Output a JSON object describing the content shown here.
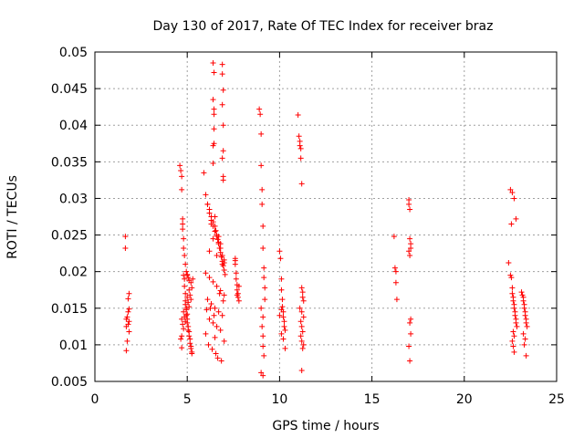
{
  "chart_data": {
    "type": "scatter",
    "title": "Day 130 of 2017, Rate Of TEC Index for receiver braz",
    "xlabel": "GPS time / hours",
    "ylabel": "ROTI / TECUs",
    "xlim": [
      0,
      25
    ],
    "ylim": [
      0.005,
      0.05
    ],
    "xticks": [
      0,
      5,
      10,
      15,
      20,
      25
    ],
    "xtick_labels": [
      "0",
      "5",
      "10",
      "15",
      "20",
      "25"
    ],
    "yticks": [
      0.005,
      0.01,
      0.015,
      0.02,
      0.025,
      0.03,
      0.035,
      0.04,
      0.045,
      0.05
    ],
    "ytick_labels": [
      "0.005",
      "0.01",
      "0.015",
      "0.02",
      "0.025",
      "0.03",
      "0.035",
      "0.04",
      "0.045",
      "0.05"
    ],
    "grid": true,
    "marker": "+",
    "marker_color": "#ff0000",
    "series": [
      {
        "x": [
          1.65,
          1.65,
          1.7,
          1.7,
          1.7,
          1.75,
          1.75,
          1.8,
          1.8,
          1.8,
          1.85,
          1.85,
          1.85,
          1.85,
          4.6,
          4.65,
          4.7,
          4.7,
          4.75,
          4.75,
          4.8,
          4.8,
          4.85,
          4.85,
          4.9,
          4.9,
          4.95,
          4.95,
          5.0,
          5.0,
          5.05,
          5.05,
          5.1,
          5.1,
          5.15,
          5.15,
          5.2,
          5.2,
          5.25,
          5.25,
          4.7,
          4.8,
          4.9,
          5.0,
          5.1,
          5.2,
          4.75,
          4.85,
          4.95,
          5.05,
          5.15,
          5.25,
          4.8,
          5.0,
          5.2,
          4.9,
          5.1,
          4.7,
          5.0,
          5.3,
          4.75,
          4.8,
          4.85,
          4.9,
          4.95,
          5.0,
          5.05,
          5.1,
          4.65,
          4.7,
          5.9,
          6.0,
          6.1,
          6.2,
          6.3,
          6.4,
          6.5,
          6.6,
          6.7,
          6.8,
          6.9,
          7.0,
          6.0,
          6.2,
          6.4,
          6.6,
          6.8,
          7.0,
          6.1,
          6.3,
          6.5,
          6.7,
          6.9,
          6.2,
          6.4,
          6.6,
          6.8,
          6.0,
          6.5,
          7.0,
          6.15,
          6.35,
          6.55,
          6.75,
          6.95,
          6.25,
          6.45,
          6.65,
          6.85,
          6.05,
          6.4,
          6.45,
          6.4,
          6.45,
          6.45,
          6.9,
          6.9,
          6.95,
          6.9,
          6.95,
          6.95,
          6.9,
          6.45,
          6.45,
          6.4,
          6.4,
          6.95,
          6.95,
          6.1,
          6.2,
          6.3,
          6.4,
          6.5,
          6.55,
          6.6,
          6.65,
          6.7,
          6.75,
          6.8,
          6.85,
          6.9,
          6.95,
          7.0,
          7.05,
          6.2,
          6.4,
          6.6,
          6.8,
          7.0,
          6.3,
          6.5,
          6.7,
          6.9,
          7.6,
          7.6,
          7.65,
          7.65,
          7.7,
          7.7,
          7.75,
          7.75,
          7.8,
          7.8,
          7.6,
          7.7,
          8.9,
          8.95,
          9.0,
          9.0,
          9.05,
          9.05,
          9.1,
          9.1,
          9.15,
          9.15,
          9.2,
          9.2,
          9.0,
          9.1,
          9.05,
          9.1,
          9.1,
          9.15,
          9.0,
          9.1,
          10.0,
          10.05,
          10.1,
          10.1,
          10.15,
          10.15,
          10.2,
          10.2,
          10.25,
          10.25,
          10.3,
          10.1,
          10.2,
          10.3,
          10.0,
          10.1,
          11.0,
          11.05,
          11.1,
          11.1,
          11.15,
          11.15,
          11.2,
          11.2,
          11.25,
          11.25,
          11.3,
          11.1,
          11.2,
          11.3,
          11.15,
          11.2,
          11.25,
          11.15,
          11.2,
          11.3,
          11.25,
          11.2,
          16.2,
          16.25,
          16.3,
          16.3,
          16.35,
          17.0,
          17.0,
          17.05,
          17.05,
          17.1,
          17.1,
          17.0,
          17.05,
          17.1,
          17.05,
          17.1,
          17.0,
          17.05,
          22.4,
          22.5,
          22.55,
          22.6,
          22.6,
          22.65,
          22.65,
          22.7,
          22.7,
          22.75,
          22.75,
          22.8,
          22.8,
          22.85,
          22.5,
          22.6,
          22.7,
          22.8,
          22.55,
          22.65,
          22.7,
          22.6,
          22.65,
          22.7,
          23.1,
          23.15,
          23.2,
          23.2,
          23.25,
          23.25,
          23.3,
          23.3,
          23.35,
          23.35,
          23.4,
          23.2,
          23.3,
          23.25,
          23.35
        ],
        "y": [
          0.0248,
          0.0232,
          0.0092,
          0.0135,
          0.0125,
          0.0105,
          0.0138,
          0.0145,
          0.0128,
          0.0163,
          0.0132,
          0.0118,
          0.0149,
          0.017,
          0.0345,
          0.0338,
          0.033,
          0.0312,
          0.0272,
          0.0265,
          0.0245,
          0.0195,
          0.019,
          0.018,
          0.017,
          0.016,
          0.015,
          0.014,
          0.0135,
          0.013,
          0.0125,
          0.012,
          0.0118,
          0.0112,
          0.0108,
          0.0102,
          0.0098,
          0.0095,
          0.009,
          0.0088,
          0.0135,
          0.0145,
          0.0155,
          0.0165,
          0.0175,
          0.0185,
          0.0128,
          0.0138,
          0.0148,
          0.0158,
          0.0168,
          0.0178,
          0.0122,
          0.0142,
          0.0162,
          0.0132,
          0.0152,
          0.0112,
          0.0195,
          0.019,
          0.0258,
          0.0232,
          0.0222,
          0.021,
          0.02,
          0.0196,
          0.0192,
          0.0188,
          0.0108,
          0.0096,
          0.0335,
          0.0305,
          0.0292,
          0.028,
          0.027,
          0.0262,
          0.0255,
          0.0248,
          0.024,
          0.0232,
          0.0222,
          0.0212,
          0.0198,
          0.0192,
          0.0186,
          0.018,
          0.0174,
          0.0168,
          0.0162,
          0.0156,
          0.015,
          0.0145,
          0.014,
          0.0135,
          0.013,
          0.0125,
          0.012,
          0.0115,
          0.011,
          0.0105,
          0.01,
          0.0094,
          0.0088,
          0.017,
          0.016,
          0.015,
          0.014,
          0.0082,
          0.0078,
          0.0148,
          0.0485,
          0.0472,
          0.0435,
          0.0422,
          0.0415,
          0.0483,
          0.047,
          0.0448,
          0.0428,
          0.04,
          0.0365,
          0.0355,
          0.0395,
          0.0375,
          0.0372,
          0.0348,
          0.033,
          0.0325,
          0.0292,
          0.0285,
          0.0275,
          0.0268,
          0.0262,
          0.0256,
          0.025,
          0.0244,
          0.0238,
          0.0232,
          0.0226,
          0.022,
          0.0214,
          0.0208,
          0.0202,
          0.0196,
          0.0228,
          0.0245,
          0.0222,
          0.0238,
          0.0216,
          0.0265,
          0.0275,
          0.0248,
          0.021,
          0.0218,
          0.021,
          0.0198,
          0.019,
          0.0182,
          0.0175,
          0.017,
          0.0165,
          0.016,
          0.018,
          0.0215,
          0.0168,
          0.0422,
          0.0415,
          0.0388,
          0.0345,
          0.0312,
          0.0292,
          0.0262,
          0.0232,
          0.0205,
          0.0192,
          0.0178,
          0.0162,
          0.015,
          0.0138,
          0.0125,
          0.0112,
          0.0098,
          0.0085,
          0.0062,
          0.0058,
          0.0228,
          0.0218,
          0.019,
          0.0175,
          0.0162,
          0.0152,
          0.0145,
          0.0138,
          0.0132,
          0.0125,
          0.012,
          0.0115,
          0.0108,
          0.0095,
          0.014,
          0.0148,
          0.0414,
          0.0385,
          0.0378,
          0.0372,
          0.0368,
          0.0355,
          0.032,
          0.0178,
          0.0172,
          0.0165,
          0.016,
          0.015,
          0.0145,
          0.0138,
          0.0132,
          0.0125,
          0.0118,
          0.0112,
          0.0105,
          0.01,
          0.0095,
          0.0065,
          0.0248,
          0.0205,
          0.02,
          0.0185,
          0.0162,
          0.0298,
          0.0292,
          0.0285,
          0.0245,
          0.0238,
          0.0232,
          0.0228,
          0.0222,
          0.0135,
          0.013,
          0.0115,
          0.0098,
          0.0078,
          0.0212,
          0.0195,
          0.0192,
          0.0178,
          0.017,
          0.0165,
          0.016,
          0.0155,
          0.015,
          0.0145,
          0.014,
          0.0135,
          0.013,
          0.0125,
          0.0312,
          0.0308,
          0.03,
          0.0272,
          0.0265,
          0.0118,
          0.0112,
          0.0105,
          0.0098,
          0.009,
          0.0172,
          0.0168,
          0.0165,
          0.016,
          0.0155,
          0.015,
          0.0145,
          0.014,
          0.0135,
          0.013,
          0.0125,
          0.0115,
          0.0108,
          0.01,
          0.0085
        ]
      }
    ]
  }
}
